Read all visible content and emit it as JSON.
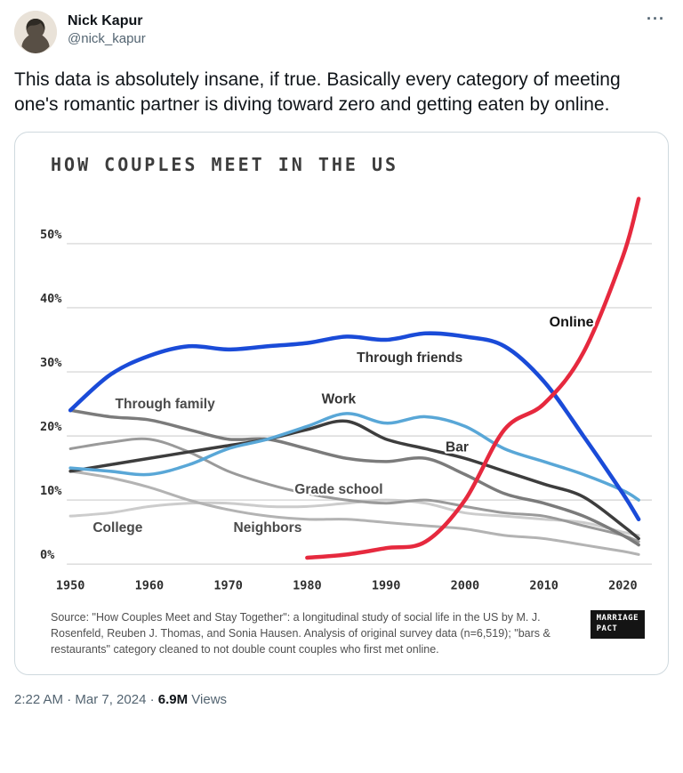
{
  "tweet": {
    "author": {
      "name": "Nick Kapur",
      "handle": "@nick_kapur"
    },
    "more_label": "···",
    "text": "This data is absolutely insane, if true. Basically every category of meeting one's romantic partner is diving toward zero and getting eaten by online.",
    "timestamp": "2:22 AM · Mar 7, 2024",
    "separator": "·",
    "views": "6.9M",
    "views_label": "Views"
  },
  "chart_data": {
    "type": "line",
    "title": "HOW COUPLES MEET IN THE US",
    "source": "Source: \"How Couples Meet and Stay Together\": a longitudinal study of social life in the US by M. J. Rosenfeld, Reuben J. Thomas, and Sonia Hausen. Analysis of original survey data (n=6,519); \"bars & restaurants\" category cleaned to not double count couples who first met online.",
    "logo": [
      "MARRIAGE",
      "PACT"
    ],
    "grid": "horizontal",
    "legend": "inline-labels",
    "xlabel": "",
    "ylabel": "",
    "xlim": [
      1950,
      2023
    ],
    "ylim": [
      0,
      59
    ],
    "x": [
      1950,
      1955,
      1960,
      1965,
      1970,
      1975,
      1980,
      1985,
      1990,
      1995,
      2000,
      2005,
      2010,
      2015,
      2020,
      2022
    ],
    "xticks": [
      1950,
      1960,
      1970,
      1980,
      1990,
      2000,
      2010,
      2020
    ],
    "yticks": [
      {
        "label": "0%",
        "value": 0
      },
      {
        "label": "10%",
        "value": 10
      },
      {
        "label": "20%",
        "value": 20
      },
      {
        "label": "30%",
        "value": 30
      },
      {
        "label": "40%",
        "value": 40
      },
      {
        "label": "50%",
        "value": 50
      }
    ],
    "series": [
      {
        "name": "College",
        "color": "#cccccc",
        "width": 3,
        "values": [
          7.5,
          8,
          9,
          9.5,
          9.5,
          9,
          9,
          9.5,
          10,
          9.5,
          8,
          7.5,
          7,
          6.5,
          5,
          4.5
        ]
      },
      {
        "name": "Neighbors",
        "color": "#b3b3b3",
        "width": 3,
        "values": [
          14.5,
          13.5,
          12,
          10,
          8.5,
          7.5,
          7,
          7,
          6.5,
          6,
          5.5,
          4.5,
          4,
          3,
          2,
          1.5
        ]
      },
      {
        "name": "Grade school",
        "color": "#9a9a9a",
        "width": 3,
        "values": [
          18,
          19,
          19.5,
          17.5,
          14.5,
          12.5,
          11,
          10,
          9.5,
          10,
          9,
          8,
          7.5,
          6,
          4.5,
          3.5
        ]
      },
      {
        "name": "Through family",
        "color": "#7b7b7b",
        "width": 3.5,
        "values": [
          24,
          23,
          22.5,
          21,
          19.5,
          19.5,
          18,
          16.5,
          16,
          16.5,
          14,
          11,
          9.5,
          7.5,
          4.5,
          3
        ]
      },
      {
        "name": "Bar",
        "color": "#3d3d3d",
        "width": 3.5,
        "values": [
          14.5,
          15.5,
          16.5,
          17.5,
          18.5,
          19.5,
          21,
          22.3,
          19.5,
          18,
          16.5,
          14.5,
          12.5,
          10.5,
          6,
          4
        ]
      },
      {
        "name": "Work",
        "color": "#59a7d7",
        "width": 3.5,
        "values": [
          15,
          14.5,
          14,
          15.5,
          18,
          19.5,
          21.5,
          23.5,
          22,
          23,
          21.5,
          18,
          16,
          14,
          11.5,
          10
        ]
      },
      {
        "name": "Through friends",
        "color": "#1a4bd8",
        "width": 4.5,
        "values": [
          24,
          29.5,
          32.5,
          34,
          33.5,
          34,
          34.5,
          35.5,
          35,
          36,
          35.5,
          34,
          28.5,
          20,
          11,
          7
        ]
      },
      {
        "name": "Online",
        "color": "#e6293e",
        "width": 4.5,
        "values": [
          null,
          null,
          null,
          null,
          null,
          null,
          1,
          1.5,
          2.5,
          3.5,
          10,
          21,
          25,
          33,
          48,
          57
        ]
      }
    ],
    "annotations": [
      {
        "text": "Through family",
        "year": 1962,
        "pct": 25.0,
        "bold": false,
        "color": "#4a4a4a"
      },
      {
        "text": "College",
        "year": 1956,
        "pct": 5.7,
        "bold": false,
        "color": "#4a4a4a"
      },
      {
        "text": "Neighbors",
        "year": 1975,
        "pct": 5.7,
        "bold": false,
        "color": "#4a4a4a"
      },
      {
        "text": "Grade school",
        "year": 1984,
        "pct": 11.7,
        "bold": false,
        "color": "#4a4a4a"
      },
      {
        "text": "Work",
        "year": 1984,
        "pct": 25.8,
        "bold": false,
        "color": "#333333"
      },
      {
        "text": "Through friends",
        "year": 1993,
        "pct": 32.2,
        "bold": false,
        "color": "#333333"
      },
      {
        "text": "Bar",
        "year": 1999,
        "pct": 18.3,
        "bold": false,
        "color": "#333333"
      },
      {
        "text": "Online",
        "year": 2013.5,
        "pct": 37.8,
        "bold": true,
        "color": "#111111"
      }
    ]
  }
}
